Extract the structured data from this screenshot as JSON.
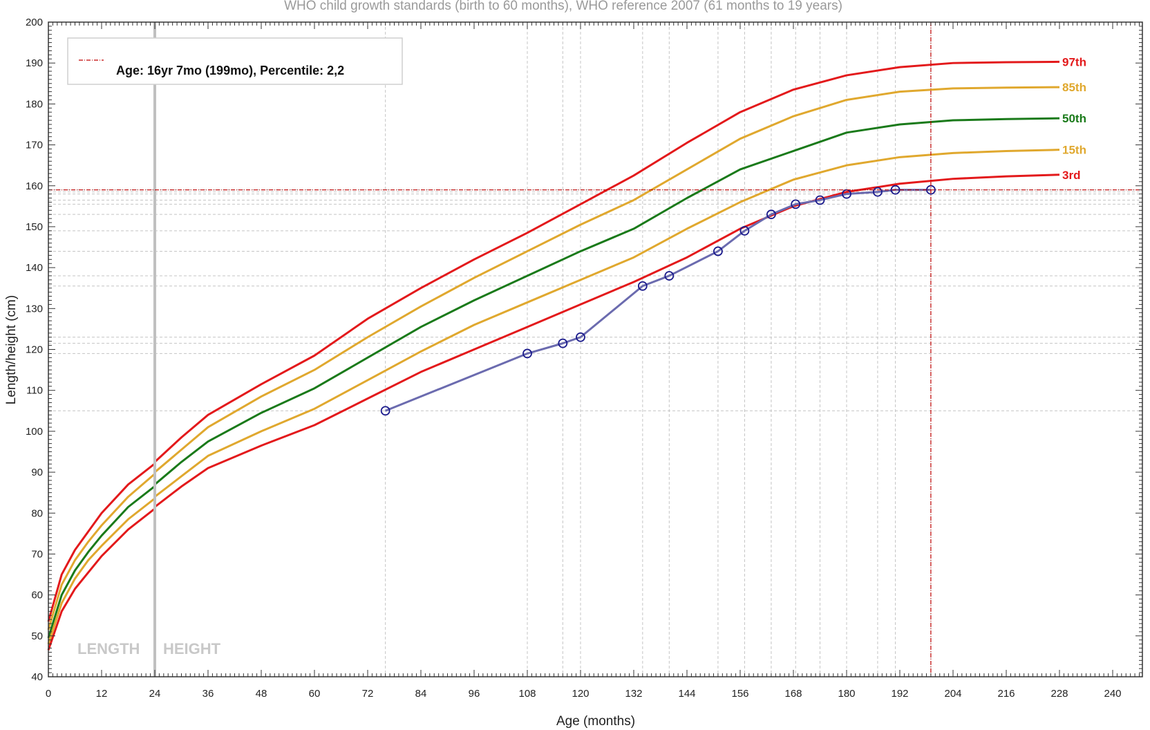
{
  "chart_data": {
    "type": "line",
    "title": "WHO child growth standards (birth to 60 months), WHO reference 2007 (61 months to 19 years)",
    "xlabel": "Age (months)",
    "ylabel": "Length/height (cm)",
    "xlim": [
      0,
      252
    ],
    "ylim": [
      40,
      200
    ],
    "xticks": [
      0,
      12,
      24,
      36,
      48,
      60,
      72,
      84,
      96,
      108,
      120,
      132,
      144,
      156,
      168,
      180,
      192,
      204,
      216,
      228,
      240
    ],
    "yticks": [
      40,
      50,
      60,
      70,
      80,
      90,
      100,
      110,
      120,
      130,
      140,
      150,
      160,
      170,
      180,
      190,
      200
    ],
    "mode_labels": {
      "length": "LENGTH",
      "height": "HEIGHT",
      "divider_age": 24
    },
    "legend": {
      "text": "Age: 16yr 7mo (199mo), Percentile: 2,2",
      "color": "#c00000"
    },
    "current": {
      "age": 199,
      "height": 159
    },
    "percentiles": [
      {
        "name": "97th",
        "color": "#e3191b",
        "x": [
          0,
          3,
          6,
          9,
          12,
          18,
          23.9,
          24,
          30,
          36,
          48,
          60,
          72,
          84,
          96,
          108,
          120,
          132,
          144,
          156,
          168,
          180,
          192,
          204,
          216,
          228
        ],
        "y": [
          53.5,
          65,
          71,
          75.5,
          80,
          87,
          92,
          92.5,
          98.5,
          104,
          111.5,
          118.5,
          127.5,
          135,
          142,
          148.5,
          155.5,
          162.5,
          170.5,
          178,
          183.5,
          187,
          189,
          190,
          190.2,
          190.3
        ]
      },
      {
        "name": "85th",
        "color": "#e0a82e",
        "x": [
          0,
          3,
          6,
          9,
          12,
          18,
          23.9,
          24,
          30,
          36,
          48,
          60,
          72,
          84,
          96,
          108,
          120,
          132,
          144,
          156,
          168,
          180,
          192,
          204,
          216,
          228
        ],
        "y": [
          51.5,
          62.5,
          68.5,
          73,
          77,
          84,
          89.5,
          90,
          95.5,
          101,
          108.5,
          115,
          123,
          130.5,
          137.5,
          144,
          150.5,
          156.5,
          164,
          171.5,
          177,
          181,
          183,
          183.8,
          184,
          184.1
        ]
      },
      {
        "name": "50th",
        "color": "#1a7a1a",
        "x": [
          0,
          3,
          6,
          9,
          12,
          18,
          23.9,
          24,
          30,
          36,
          48,
          60,
          72,
          84,
          96,
          108,
          120,
          132,
          144,
          156,
          168,
          180,
          192,
          204,
          216,
          228
        ],
        "y": [
          49.5,
          60,
          66,
          70.5,
          74.5,
          81.5,
          86.5,
          87,
          92.5,
          97.5,
          104.5,
          110.5,
          118,
          125.5,
          132,
          138,
          144,
          149.5,
          157,
          164,
          168.5,
          173,
          175,
          176,
          176.3,
          176.5
        ]
      },
      {
        "name": "15th",
        "color": "#e0a82e",
        "x": [
          0,
          3,
          6,
          9,
          12,
          18,
          23.9,
          24,
          30,
          36,
          48,
          60,
          72,
          84,
          96,
          108,
          120,
          132,
          144,
          156,
          168,
          180,
          192,
          204,
          216,
          228
        ],
        "y": [
          48,
          58,
          64,
          68.5,
          72,
          78.5,
          83.5,
          84,
          89,
          94,
          100,
          105.5,
          112.5,
          119.5,
          126,
          131.5,
          137,
          142.5,
          149.5,
          156,
          161.5,
          165,
          167,
          168,
          168.5,
          168.8
        ]
      },
      {
        "name": "3rd",
        "color": "#e3191b",
        "x": [
          0,
          3,
          6,
          9,
          12,
          18,
          23.9,
          24,
          30,
          36,
          48,
          60,
          72,
          84,
          96,
          108,
          120,
          132,
          144,
          156,
          168,
          180,
          192,
          204,
          216,
          228
        ],
        "y": [
          46.5,
          56,
          61.5,
          65.5,
          69.5,
          76,
          81,
          81.5,
          86.5,
          91,
          96.5,
          101.5,
          108,
          114.5,
          120,
          125.5,
          131,
          136.5,
          142.5,
          149.5,
          155,
          158.5,
          160.5,
          161.7,
          162.3,
          162.7
        ]
      }
    ],
    "patient": {
      "name": "",
      "color": "#6b6baf",
      "marker_color": "#1a1a8c",
      "x": [
        76,
        108,
        116,
        120,
        134,
        140,
        151,
        157,
        163,
        168.5,
        174,
        180,
        187,
        191,
        199
      ],
      "y": [
        105,
        119,
        121.5,
        123,
        135.5,
        138,
        144,
        149,
        153,
        155.5,
        156.5,
        158,
        158.5,
        159,
        159
      ]
    }
  }
}
